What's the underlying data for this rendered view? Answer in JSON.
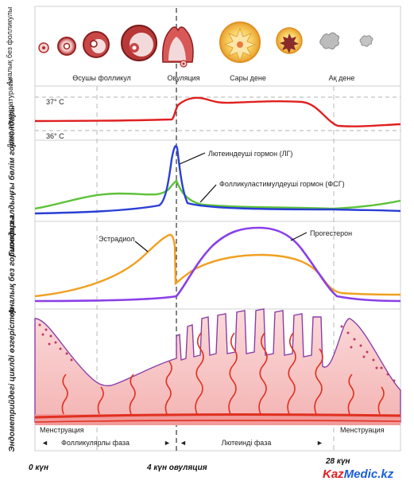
{
  "panels": {
    "ovary": {
      "label": "Аналық без фолликулы",
      "stage_labels": [
        "Өсушы фолликул",
        "Овуляция",
        "Сары дене",
        "Ақ дене"
      ]
    },
    "temperature": {
      "label": "Дене температурасы",
      "high": "37° C",
      "low": "36° C"
    },
    "pituitary": {
      "label": "Гипофиз алдыңғы бөлім гормондары",
      "lh_label": "Лютеиндеуші гормон (ЛГ)",
      "fsh_label": "Фолликуластимулдеуші гормон (ФСГ)"
    },
    "ovarian_hormones": {
      "label": "Аналық без гормондары",
      "estradiol_label": "Эстрадиол",
      "progesterone_label": "Прогестерон"
    },
    "endometrium": {
      "label": "Эндометрийдегі циклді өзгерістер",
      "menstruation_left": "Менструация",
      "menstruation_right": "Менструация",
      "follicular_phase": "Фолликулярлы фаза",
      "luteal_phase": "Лютеинді фаза"
    }
  },
  "axis": {
    "day0": "0 күн",
    "ovulation_day": "4 күн овуляция",
    "day28": "28 күн"
  },
  "brand": {
    "part1": "Kaz",
    "part2": "Medic.kz",
    "color1": "#e02020",
    "color2": "#1a5fd8"
  },
  "colors": {
    "temperature": "#e02020",
    "lh": "#2a3fd6",
    "fsh": "#5cc23a",
    "estradiol": "#f0a020",
    "progesterone": "#8a3fe8",
    "endometrium_fill": "#f7c6c6",
    "endometrium_outline": "#8a3fa8",
    "vessel": "#e03020"
  }
}
